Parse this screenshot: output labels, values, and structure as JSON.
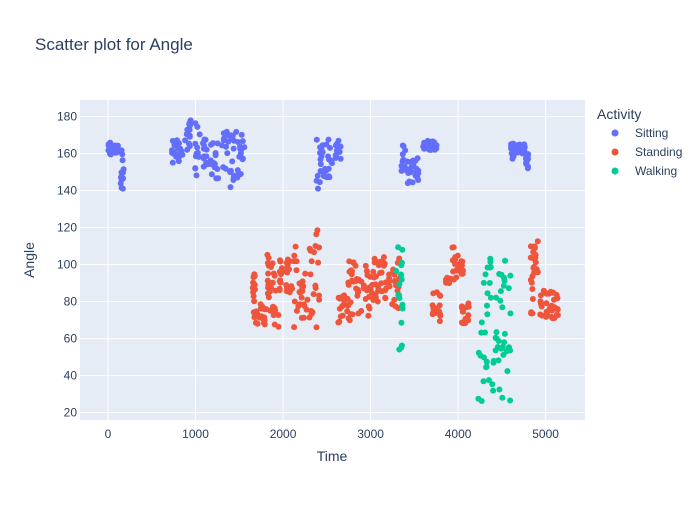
{
  "chart_data": {
    "type": "scatter",
    "title": "Scatter plot for Angle",
    "xlabel": "Time",
    "ylabel": "Angle",
    "xlim": [
      -320,
      5450
    ],
    "ylim": [
      16,
      189
    ],
    "x_ticks": [
      0,
      1000,
      2000,
      3000,
      4000,
      5000
    ],
    "y_ticks": [
      20,
      40,
      60,
      80,
      100,
      120,
      140,
      160,
      180
    ],
    "grid": true,
    "legend_title": "Activity",
    "legend_position": "right",
    "series": [
      {
        "name": "Sitting",
        "color": "#636efa",
        "segments": [
          {
            "x": [
              0,
              40
            ],
            "y": [
              158,
              166
            ]
          },
          {
            "x": [
              40,
              120
            ],
            "y": [
              160,
              165
            ]
          },
          {
            "x": [
              130,
              190
            ],
            "y": [
              141,
              163
            ]
          },
          {
            "x": [
              730,
              850
            ],
            "y": [
              151,
              168
            ]
          },
          {
            "x": [
              880,
              960
            ],
            "y": [
              162,
              178
            ]
          },
          {
            "x": [
              990,
              1050
            ],
            "y": [
              148,
              180
            ]
          },
          {
            "x": [
              1080,
              1140
            ],
            "y": [
              148,
              168
            ]
          },
          {
            "x": [
              1160,
              1260
            ],
            "y": [
              146,
              167
            ]
          },
          {
            "x": [
              1300,
              1380
            ],
            "y": [
              150,
              172
            ]
          },
          {
            "x": [
              1390,
              1450
            ],
            "y": [
              139,
              173
            ]
          },
          {
            "x": [
              1460,
              1560
            ],
            "y": [
              146,
              172
            ]
          },
          {
            "x": [
              2380,
              2440
            ],
            "y": [
              141,
              168
            ]
          },
          {
            "x": [
              2450,
              2560
            ],
            "y": [
              146,
              168
            ]
          },
          {
            "x": [
              2600,
              2670
            ],
            "y": [
              156,
              168
            ]
          },
          {
            "x": [
              3350,
              3400
            ],
            "y": [
              150,
              165
            ]
          },
          {
            "x": [
              3400,
              3550
            ],
            "y": [
              144,
              158
            ]
          },
          {
            "x": [
              3600,
              3760
            ],
            "y": [
              162,
              167
            ]
          },
          {
            "x": [
              4600,
              4640
            ],
            "y": [
              157,
              167
            ]
          },
          {
            "x": [
              4640,
              4770
            ],
            "y": [
              160,
              165
            ]
          },
          {
            "x": [
              4770,
              4800
            ],
            "y": [
              152,
              160
            ]
          }
        ]
      },
      {
        "name": "Standing",
        "color": "#ef553b",
        "segments": [
          {
            "x": [
              1650,
              1680
            ],
            "y": [
              70,
              96
            ]
          },
          {
            "x": [
              1680,
              1800
            ],
            "y": [
              67,
              79
            ]
          },
          {
            "x": [
              1800,
              1840
            ],
            "y": [
              75,
              109
            ]
          },
          {
            "x": [
              1850,
              1960
            ],
            "y": [
              66,
              107
            ]
          },
          {
            "x": [
              1960,
              2120
            ],
            "y": [
              85,
              104
            ]
          },
          {
            "x": [
              2120,
              2200
            ],
            "y": [
              65,
              115
            ]
          },
          {
            "x": [
              2200,
              2280
            ],
            "y": [
              70,
              98
            ]
          },
          {
            "x": [
              2300,
              2420
            ],
            "y": [
              65,
              121
            ]
          },
          {
            "x": [
              2630,
              2700
            ],
            "y": [
              68,
              84
            ]
          },
          {
            "x": [
              2700,
              2780
            ],
            "y": [
              68,
              104
            ]
          },
          {
            "x": [
              2780,
              2900
            ],
            "y": [
              72,
              102
            ]
          },
          {
            "x": [
              2920,
              3040
            ],
            "y": [
              70,
              101
            ]
          },
          {
            "x": [
              3040,
              3230
            ],
            "y": [
              80,
              105
            ]
          },
          {
            "x": [
              3230,
              3330
            ],
            "y": [
              75,
              105
            ]
          },
          {
            "x": [
              3700,
              3800
            ],
            "y": [
              68,
              87
            ]
          },
          {
            "x": [
              3860,
              3920
            ],
            "y": [
              90,
              93
            ]
          },
          {
            "x": [
              3930,
              4000
            ],
            "y": [
              91,
              111
            ]
          },
          {
            "x": [
              4000,
              4060
            ],
            "y": [
              95,
              102
            ]
          },
          {
            "x": [
              4040,
              4130
            ],
            "y": [
              68,
              80
            ]
          },
          {
            "x": [
              4830,
              4860
            ],
            "y": [
              73,
              112
            ]
          },
          {
            "x": [
              4860,
              4920
            ],
            "y": [
              95,
              113
            ]
          },
          {
            "x": [
              4920,
              5140
            ],
            "y": [
              70,
              86
            ]
          }
        ]
      },
      {
        "name": "Walking",
        "color": "#00cc96",
        "segments": [
          {
            "x": [
              3280,
              3380
            ],
            "y": [
              54,
              115
            ]
          },
          {
            "x": [
              4230,
              4600
            ],
            "y": [
              26,
              110
            ]
          }
        ]
      }
    ]
  }
}
